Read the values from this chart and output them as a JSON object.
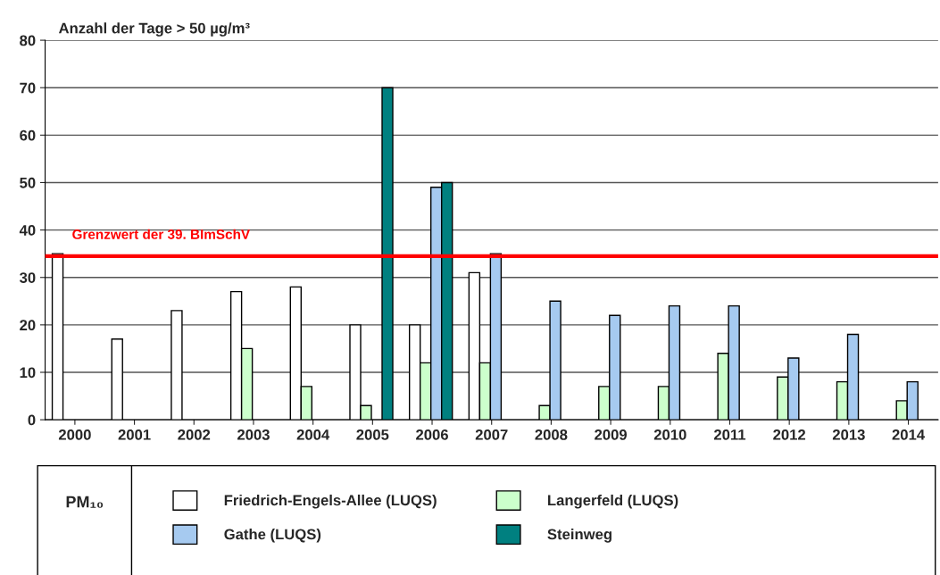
{
  "chart_data": {
    "type": "bar",
    "ylabel": "Anzahl der Tage > 50 µg/m³",
    "legend_title": "PM₁₀",
    "categories": [
      "2000",
      "2001",
      "2002",
      "2003",
      "2004",
      "2005",
      "2006",
      "2007",
      "2008",
      "2009",
      "2010",
      "2011",
      "2012",
      "2013",
      "2014"
    ],
    "series": [
      {
        "name": "Friedrich-Engels-Allee (LUQS)",
        "color": "#ffffff",
        "values": [
          35,
          17,
          23,
          27,
          28,
          20,
          20,
          31,
          null,
          null,
          null,
          null,
          null,
          null,
          null
        ]
      },
      {
        "name": "Langerfeld (LUQS)",
        "color": "#ccffcc",
        "values": [
          null,
          null,
          null,
          15,
          7,
          3,
          12,
          12,
          3,
          7,
          7,
          14,
          9,
          8,
          4
        ]
      },
      {
        "name": "Gathe (LUQS)",
        "color": "#a6caf0",
        "values": [
          null,
          null,
          null,
          null,
          null,
          null,
          49,
          35,
          25,
          22,
          24,
          24,
          13,
          18,
          8
        ]
      },
      {
        "name": "Steinweg",
        "color": "#008080",
        "values": [
          null,
          null,
          null,
          null,
          null,
          70,
          50,
          null,
          null,
          null,
          null,
          null,
          null,
          null,
          null
        ]
      }
    ],
    "ylim": [
      0,
      80
    ],
    "yticks": [
      0,
      10,
      20,
      30,
      40,
      50,
      60,
      70,
      80
    ],
    "grid": "y",
    "legend": "bottom",
    "ref_lines": [
      {
        "axis": "y",
        "value": 34.5,
        "label": "Grenzwert der 39. BImSchV",
        "color": "#ff0000"
      }
    ]
  }
}
